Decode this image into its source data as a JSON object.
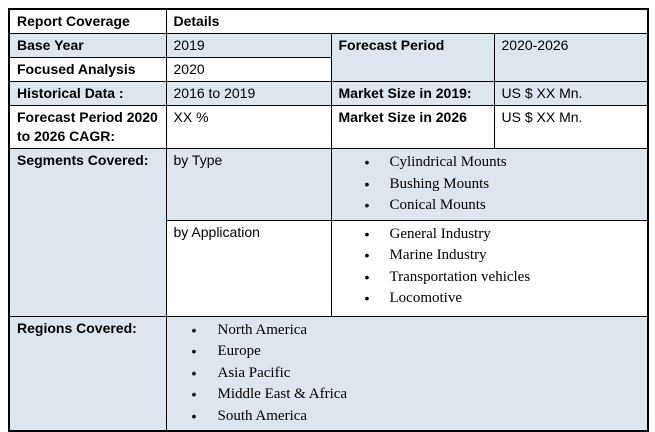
{
  "colors": {
    "shaded_row_bg": "#DCE6F1",
    "border": "#000000",
    "page_bg": "#FFFFFF"
  },
  "table": {
    "header": {
      "report_coverage": "Report Coverage",
      "details": "Details"
    },
    "base_year": {
      "label": "Base Year",
      "value": "2019"
    },
    "focused_analysis": {
      "label": "Focused Analysis",
      "value": "2020"
    },
    "forecast_period": {
      "label": "Forecast Period",
      "value": "2020-2026"
    },
    "historical_data": {
      "label": "Historical Data :",
      "value": "2016 to 2019"
    },
    "market_size_2019": {
      "label": "Market Size in 2019:",
      "value": "US $ XX Mn."
    },
    "forecast_cagr": {
      "label": "Forecast Period 2020 to 2026 CAGR:",
      "value": "XX %"
    },
    "market_size_2026": {
      "label": "Market Size in 2026",
      "value": "US $ XX Mn."
    },
    "segments": {
      "label": "Segments Covered:",
      "by_type": {
        "label": "by Type",
        "items": [
          "Cylindrical Mounts",
          "Bushing Mounts",
          "Conical Mounts"
        ]
      },
      "by_application": {
        "label": "by Application",
        "items": [
          "General Industry",
          "Marine Industry",
          "Transportation vehicles",
          "Locomotive"
        ]
      }
    },
    "regions": {
      "label": "Regions Covered:",
      "items": [
        "North America",
        "Europe",
        "Asia Pacific",
        "Middle East & Africa",
        "South America"
      ]
    }
  }
}
